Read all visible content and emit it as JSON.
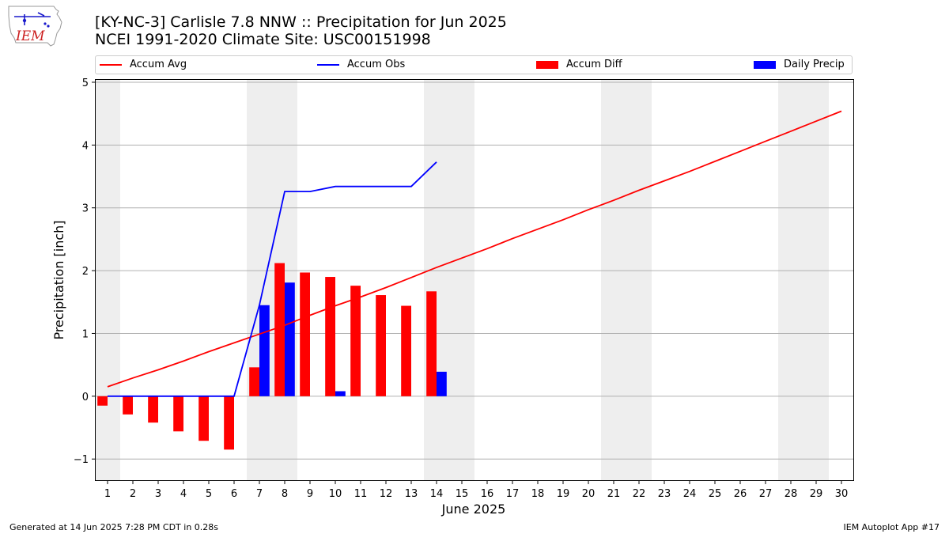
{
  "logo": {
    "text": "IEM"
  },
  "header": {
    "title": "[KY-NC-3] Carlisle 7.8 NNW :: Precipitation for Jun 2025",
    "subtitle": "NCEI 1991-2020 Climate Site: USC00151998"
  },
  "footer": {
    "left": "Generated at 14 Jun 2025 7:28 PM CDT in 0.28s",
    "right": "IEM Autoplot App #17"
  },
  "colors": {
    "avg": "#ff0000",
    "obs": "#0000ff",
    "diff": "#ff0000",
    "daily": "#0000ff",
    "weekend": "#eeeeee",
    "grid": "#b0b0b0"
  },
  "chart_data": {
    "type": "bar",
    "xlabel": "June 2025",
    "ylabel": "Precipitation [inch]",
    "ylim": [
      -1.35,
      5.05
    ],
    "xlim": [
      0.5,
      30.5
    ],
    "yticks": [
      -1,
      0,
      1,
      2,
      3,
      4,
      5
    ],
    "ytick_labels": [
      "−1",
      "0",
      "1",
      "2",
      "3",
      "4",
      "5"
    ],
    "days": [
      1,
      2,
      3,
      4,
      5,
      6,
      7,
      8,
      9,
      10,
      11,
      12,
      13,
      14,
      15,
      16,
      17,
      18,
      19,
      20,
      21,
      22,
      23,
      24,
      25,
      26,
      27,
      28,
      29,
      30
    ],
    "weekend_days": [
      1,
      7,
      8,
      14,
      15,
      21,
      22,
      28,
      29
    ],
    "grid": "horizontal",
    "legend_position": "top",
    "series": [
      {
        "name": "Accum Avg",
        "kind": "line",
        "color": "#ff0000",
        "x": [
          1,
          2,
          3,
          4,
          5,
          6,
          7,
          8,
          9,
          10,
          11,
          12,
          13,
          14,
          15,
          16,
          17,
          18,
          19,
          20,
          21,
          22,
          23,
          24,
          25,
          26,
          27,
          28,
          29,
          30
        ],
        "values": [
          0.15,
          0.29,
          0.42,
          0.56,
          0.71,
          0.85,
          0.99,
          1.13,
          1.29,
          1.44,
          1.58,
          1.73,
          1.89,
          2.05,
          2.2,
          2.35,
          2.51,
          2.66,
          2.81,
          2.97,
          3.12,
          3.28,
          3.43,
          3.58,
          3.74,
          3.9,
          4.06,
          4.22,
          4.38,
          4.54
        ]
      },
      {
        "name": "Accum Obs",
        "kind": "line",
        "color": "#0000ff",
        "x": [
          1,
          2,
          3,
          4,
          5,
          6,
          7,
          8,
          9,
          10,
          11,
          12,
          13,
          14
        ],
        "values": [
          0,
          0,
          0,
          0,
          0,
          0,
          1.45,
          3.26,
          3.26,
          3.34,
          3.34,
          3.34,
          3.34,
          3.73
        ]
      },
      {
        "name": "Accum Diff",
        "kind": "bar",
        "color": "#ff0000",
        "offset": "left",
        "x": [
          1,
          2,
          3,
          4,
          5,
          6,
          7,
          8,
          9,
          10,
          11,
          12,
          13,
          14
        ],
        "values": [
          -0.15,
          -0.29,
          -0.42,
          -0.56,
          -0.71,
          -0.85,
          0.46,
          2.12,
          1.97,
          1.9,
          1.76,
          1.61,
          1.44,
          1.67
        ]
      },
      {
        "name": "Daily Precip",
        "kind": "bar",
        "color": "#0000ff",
        "offset": "right",
        "x": [
          1,
          2,
          3,
          4,
          5,
          6,
          7,
          8,
          9,
          10,
          11,
          12,
          13,
          14
        ],
        "values": [
          0,
          0,
          0,
          0,
          0,
          0,
          1.45,
          1.81,
          0,
          0.08,
          0,
          0,
          0,
          0.39
        ]
      }
    ]
  }
}
